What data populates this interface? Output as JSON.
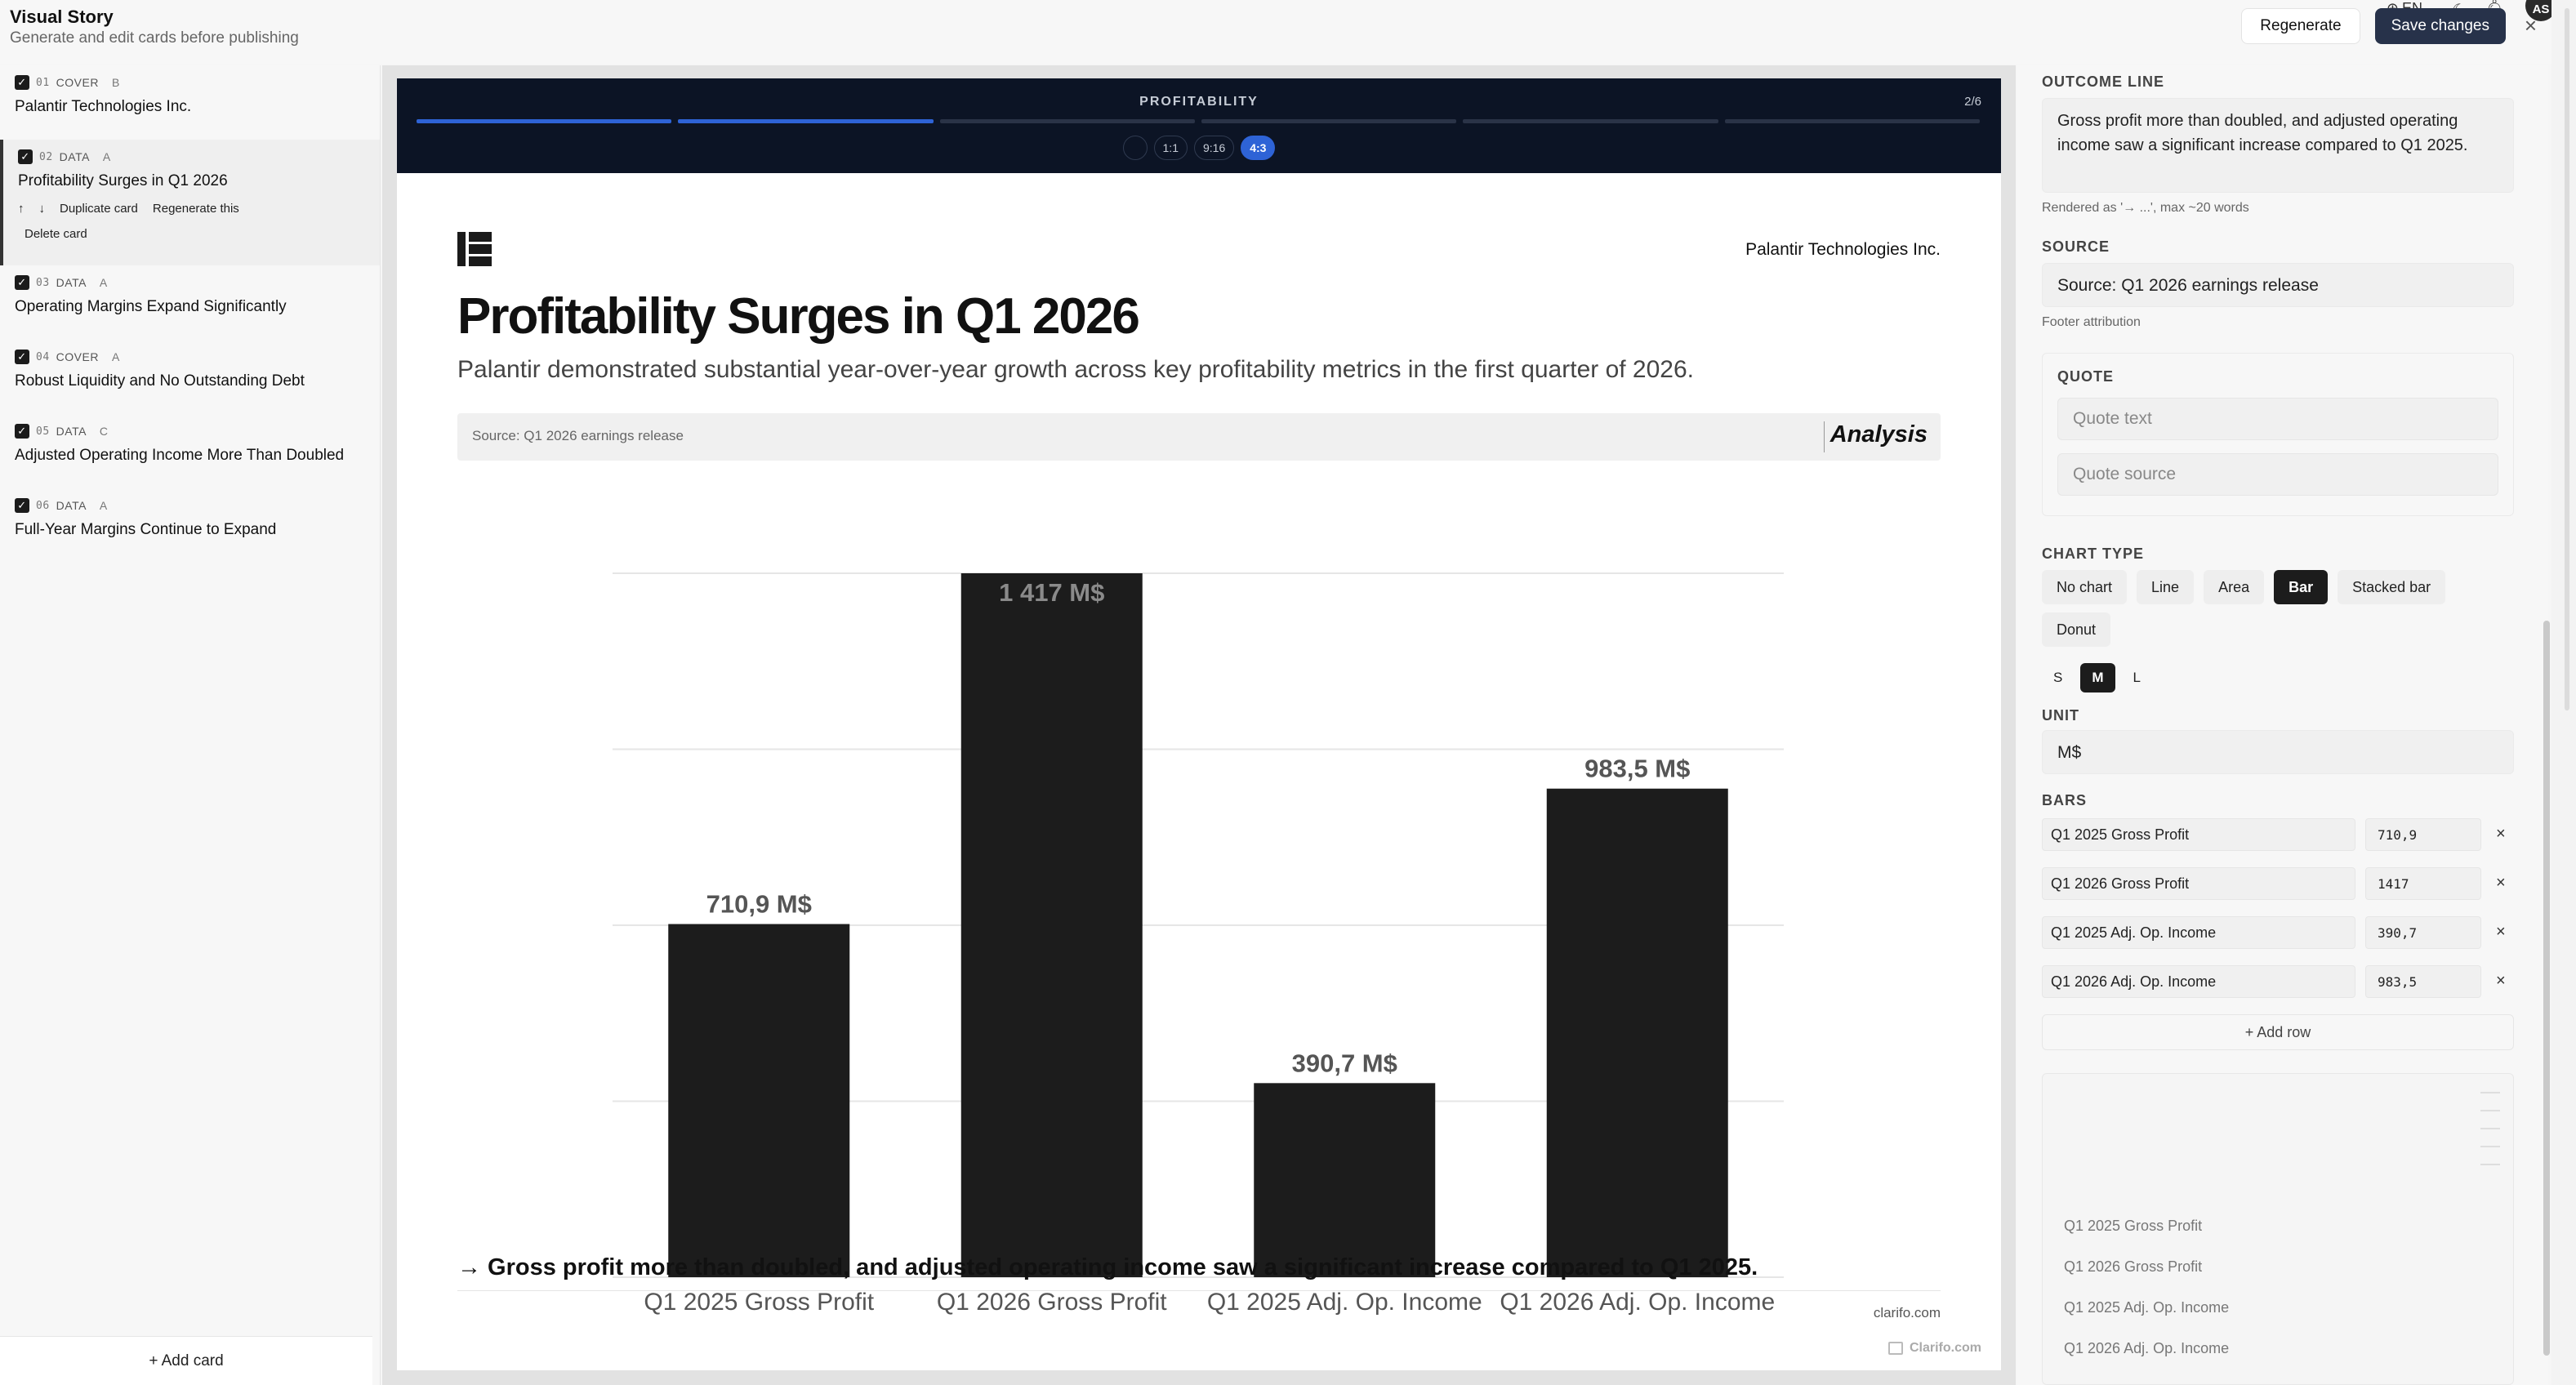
{
  "app": {
    "title": "Visual Story",
    "subtitle": "Generate and edit cards before publishing"
  },
  "header": {
    "regenerate_label": "Regenerate",
    "save_label": "Save changes",
    "language": "EN",
    "avatar_initials": "AS"
  },
  "sidebar": {
    "cards": [
      {
        "num": "01",
        "tag": "COVER",
        "variant": "B",
        "title": "Palantir Technologies Inc."
      },
      {
        "num": "02",
        "tag": "DATA",
        "variant": "A",
        "title": "Profitability Surges in Q1 2026"
      },
      {
        "num": "03",
        "tag": "DATA",
        "variant": "A",
        "title": "Operating Margins Expand Significantly"
      },
      {
        "num": "04",
        "tag": "COVER",
        "variant": "A",
        "title": "Robust Liquidity and No Outstanding Debt"
      },
      {
        "num": "05",
        "tag": "DATA",
        "variant": "C",
        "title": "Adjusted Operating Income More Than Doubled"
      },
      {
        "num": "06",
        "tag": "DATA",
        "variant": "A",
        "title": "Full-Year Margins Continue to Expand"
      }
    ],
    "card_actions": {
      "up": "↑",
      "down": "↓",
      "duplicate": "Duplicate card",
      "regenerate": "Regenerate this",
      "delete": "Delete card"
    },
    "add_card": "+ Add card"
  },
  "slide": {
    "section": "PROFITABILITY",
    "page": "2/6",
    "ratios": [
      "",
      "1:1",
      "9:16",
      "4:3"
    ],
    "company": "Palantir Technologies Inc.",
    "title": "Profitability Surges in Q1 2026",
    "subtitle": "Palantir demonstrated substantial year-over-year growth across key profitability metrics in the first quarter of 2026.",
    "source": "Source: Q1 2026 earnings release",
    "badge": "Analysis",
    "outcome": "→ Gross profit more than doubled, and adjusted operating income saw a significant increase compared to Q1 2025.",
    "footer_site": "clarifo.com",
    "watermark": "Clarifo.com"
  },
  "chart_data": {
    "type": "bar",
    "categories": [
      "Q1 2025 Gross Profit",
      "Q1 2026 Gross Profit",
      "Q1 2025 Adj. Op. Income",
      "Q1 2026 Adj. Op. Income"
    ],
    "values": [
      710.9,
      1417,
      390.7,
      983.5
    ],
    "value_labels": [
      "710,9 M$",
      "1 417 M$",
      "390,7 M$",
      "983,5 M$"
    ],
    "unit": "M$",
    "ylim": [
      0,
      1417
    ],
    "grid": true,
    "bar_color": "#1c1c1c"
  },
  "editor": {
    "outcome_label": "OUTCOME LINE",
    "outcome_value": "Gross profit more than doubled, and adjusted operating income saw a significant increase compared to Q1 2025.",
    "outcome_help": "Rendered as '→ ...', max ~20 words",
    "source_label": "SOURCE",
    "source_value": "Source: Q1 2026 earnings release",
    "source_help": "Footer attribution",
    "quote_label": "QUOTE",
    "quote_text_placeholder": "Quote text",
    "quote_source_placeholder": "Quote source",
    "chart_type_label": "CHART TYPE",
    "chart_types": [
      "No chart",
      "Line",
      "Area",
      "Bar",
      "Stacked bar",
      "Donut"
    ],
    "chart_type_selected": "Bar",
    "sizes": [
      "S",
      "M",
      "L"
    ],
    "size_selected": "M",
    "unit_label": "UNIT",
    "unit_value": "M$",
    "bars_label": "BARS",
    "bars": [
      {
        "name": "Q1 2025 Gross Profit",
        "value": "710,9"
      },
      {
        "name": "Q1 2026 Gross Profit",
        "value": "1417"
      },
      {
        "name": "Q1 2025 Adj. Op. Income",
        "value": "390,7"
      },
      {
        "name": "Q1 2026 Adj. Op. Income",
        "value": "983,5"
      }
    ],
    "add_row": "+ Add row",
    "preview_labels": [
      "Q1 2025 Gross Profit",
      "Q1 2026 Gross Profit",
      "Q1 2025 Adj. Op. Income",
      "Q1 2026 Adj. Op. Income"
    ]
  }
}
